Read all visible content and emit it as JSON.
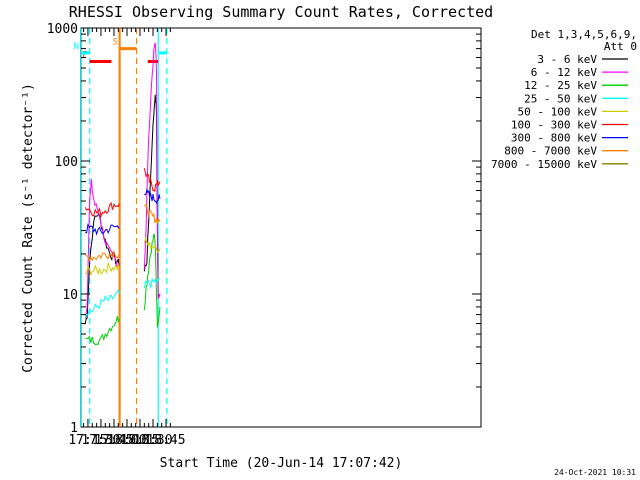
{
  "chart_data": {
    "type": "line",
    "title": "RHESSI Observing Summary Count Rates, Corrected",
    "xlabel": "Start Time (20-Jun-14 17:07:42)",
    "ylabel": "Corrected Count Rate (s⁻¹ detector⁻¹)",
    "ylog": true,
    "xlim_min": [
      1027,
      1488
    ],
    "ylim": [
      1,
      1000
    ],
    "xticks": [
      {
        "min": 1035,
        "label": "17:15"
      },
      {
        "min": 1050,
        "label": "17:30"
      },
      {
        "min": 1065,
        "label": "17:45"
      },
      {
        "min": 1080,
        "label": "18:00"
      },
      {
        "min": 1095,
        "label": "18:15"
      },
      {
        "min": 1110,
        "label": "18:30"
      },
      {
        "min": 1125,
        "label": "18:45"
      }
    ],
    "yticks": [
      {
        "value": 1,
        "label": "1"
      },
      {
        "value": 10,
        "label": "10"
      },
      {
        "value": 100,
        "label": "100"
      },
      {
        "value": 1000,
        "label": "1000"
      }
    ],
    "legend": {
      "placement": "right",
      "header": [
        "Det 1,3,4,5,6,9,",
        "Att 0"
      ]
    },
    "series": [
      {
        "name": "3 - 6 keV",
        "color": "#000000",
        "segments": [
          [
            [
              1032,
              6
            ],
            [
              1034,
              7
            ],
            [
              1037,
              18
            ],
            [
              1040,
              28
            ],
            [
              1043,
              38
            ],
            [
              1046,
              40
            ],
            [
              1049,
              37
            ],
            [
              1052,
              30
            ],
            [
              1055,
              25
            ],
            [
              1058,
              22
            ],
            [
              1061,
              20
            ],
            [
              1064,
              19
            ],
            [
              1067,
              18
            ],
            [
              1070,
              17
            ],
            [
              1071,
              17
            ]
          ],
          [
            [
              1100,
              15
            ],
            [
              1101,
              16
            ],
            [
              1103,
              18
            ],
            [
              1105,
              35
            ],
            [
              1107,
              70
            ],
            [
              1109,
              140
            ],
            [
              1111,
              230
            ],
            [
              1112,
              300
            ],
            [
              1113,
              290
            ],
            [
              1114,
              230
            ],
            [
              1115,
              30
            ],
            [
              1116,
              9
            ],
            [
              1118,
              10
            ]
          ]
        ]
      },
      {
        "name": "6 - 12 keV",
        "color": "#ff00ff",
        "segments": [
          [
            [
              1032,
              7
            ],
            [
              1034,
              8
            ],
            [
              1036,
              30
            ],
            [
              1037,
              50
            ],
            [
              1039,
              68
            ],
            [
              1041,
              55
            ],
            [
              1043,
              47
            ],
            [
              1046,
              43
            ],
            [
              1049,
              38
            ],
            [
              1052,
              30
            ],
            [
              1055,
              25
            ],
            [
              1058,
              22
            ],
            [
              1061,
              20
            ],
            [
              1064,
              19
            ],
            [
              1067,
              18
            ],
            [
              1070,
              17
            ],
            [
              1071,
              17
            ]
          ],
          [
            [
              1100,
              16
            ],
            [
              1102,
              30
            ],
            [
              1104,
              100
            ],
            [
              1106,
              200
            ],
            [
              1108,
              350
            ],
            [
              1110,
              550
            ],
            [
              1112,
              760
            ],
            [
              1113,
              700
            ],
            [
              1114,
              500
            ],
            [
              1115,
              35
            ],
            [
              1116,
              10
            ],
            [
              1118,
              10
            ]
          ]
        ]
      },
      {
        "name": "12 - 25 keV",
        "color": "#00cc00",
        "segments": [
          [
            [
              1032,
              4.5
            ],
            [
              1035,
              4.5
            ],
            [
              1040,
              4.5
            ],
            [
              1045,
              4.5
            ],
            [
              1050,
              4.5
            ],
            [
              1055,
              5
            ],
            [
              1060,
              5.5
            ],
            [
              1065,
              6
            ],
            [
              1069,
              6.5
            ],
            [
              1071,
              6.5
            ]
          ],
          [
            [
              1100,
              8
            ],
            [
              1102,
              11
            ],
            [
              1104,
              14
            ],
            [
              1106,
              18
            ],
            [
              1108,
              22
            ],
            [
              1110,
              25
            ],
            [
              1111,
              28
            ],
            [
              1112,
              25
            ],
            [
              1113,
              20
            ],
            [
              1114,
              10
            ],
            [
              1115,
              6
            ],
            [
              1118,
              8
            ]
          ]
        ]
      },
      {
        "name": "25 - 50 keV",
        "color": "#00ffff",
        "segments": [
          [
            [
              1032,
              7
            ],
            [
              1035,
              7.5
            ],
            [
              1040,
              7.5
            ],
            [
              1045,
              8
            ],
            [
              1050,
              8.5
            ],
            [
              1055,
              9
            ],
            [
              1060,
              9
            ],
            [
              1065,
              9.5
            ],
            [
              1069,
              10
            ],
            [
              1071,
              10
            ]
          ],
          [
            [
              1100,
              11
            ],
            [
              1103,
              12
            ],
            [
              1106,
              12
            ],
            [
              1109,
              12
            ],
            [
              1112,
              12.5
            ],
            [
              1115,
              12
            ],
            [
              1118,
              13
            ]
          ]
        ]
      },
      {
        "name": "50 - 100 keV",
        "color": "#cccc00",
        "segments": [
          [
            [
              1032,
              14
            ],
            [
              1035,
              15
            ],
            [
              1040,
              15
            ],
            [
              1045,
              15
            ],
            [
              1050,
              15
            ],
            [
              1055,
              15.5
            ],
            [
              1060,
              16
            ],
            [
              1065,
              16
            ],
            [
              1069,
              16
            ],
            [
              1071,
              16
            ]
          ],
          [
            [
              1100,
              25
            ],
            [
              1103,
              24
            ],
            [
              1106,
              23
            ],
            [
              1109,
              23
            ],
            [
              1112,
              22
            ],
            [
              1115,
              22
            ],
            [
              1118,
              22
            ]
          ]
        ]
      },
      {
        "name": "100 - 300 keV",
        "color": "#ff0000",
        "segments": [
          [
            [
              1032,
              45
            ],
            [
              1035,
              44
            ],
            [
              1040,
              42
            ],
            [
              1045,
              41
            ],
            [
              1050,
              41
            ],
            [
              1055,
              43
            ],
            [
              1060,
              45
            ],
            [
              1065,
              47
            ],
            [
              1069,
              47
            ],
            [
              1071,
              48
            ]
          ],
          [
            [
              1100,
              85
            ],
            [
              1102,
              80
            ],
            [
              1104,
              75
            ],
            [
              1106,
              70
            ],
            [
              1108,
              66
            ],
            [
              1110,
              64
            ],
            [
              1112,
              63
            ],
            [
              1114,
              66
            ],
            [
              1116,
              68
            ],
            [
              1118,
              70
            ]
          ]
        ]
      },
      {
        "name": "300 - 800 keV",
        "color": "#0000ff",
        "segments": [
          [
            [
              1032,
              30
            ],
            [
              1035,
              31
            ],
            [
              1040,
              31
            ],
            [
              1045,
              30
            ],
            [
              1050,
              29
            ],
            [
              1055,
              30
            ],
            [
              1060,
              31
            ],
            [
              1065,
              32
            ],
            [
              1069,
              32
            ],
            [
              1071,
              32
            ]
          ],
          [
            [
              1100,
              60
            ],
            [
              1102,
              58
            ],
            [
              1104,
              56
            ],
            [
              1106,
              55
            ],
            [
              1108,
              54
            ],
            [
              1110,
              53
            ],
            [
              1112,
              52
            ],
            [
              1114,
              52
            ],
            [
              1116,
              52
            ],
            [
              1118,
              52
            ]
          ]
        ]
      },
      {
        "name": "800 - 7000 keV",
        "color": "#ff8000",
        "segments": [
          [
            [
              1032,
              19
            ],
            [
              1035,
              19
            ],
            [
              1040,
              19
            ],
            [
              1045,
              19
            ],
            [
              1050,
              19.5
            ],
            [
              1055,
              20
            ],
            [
              1060,
              20
            ],
            [
              1065,
              20.5
            ],
            [
              1069,
              20
            ],
            [
              1071,
              20
            ]
          ],
          [
            [
              1100,
              46
            ],
            [
              1102,
              44
            ],
            [
              1104,
              42
            ],
            [
              1106,
              40
            ],
            [
              1108,
              39
            ],
            [
              1110,
              38
            ],
            [
              1112,
              37
            ],
            [
              1114,
              36
            ],
            [
              1116,
              36
            ],
            [
              1118,
              36
            ]
          ]
        ]
      },
      {
        "name": "7000 - 15000 keV",
        "color": "#808000",
        "segments": []
      }
    ],
    "attenuator_bars": [
      {
        "label": "F",
        "color": "#ff0000",
        "y": 560,
        "segments": [
          [
            1037,
            1062
          ],
          [
            1104,
            1116
          ]
        ]
      },
      {
        "label": "N",
        "color": "#00ffff",
        "y": 650,
        "segments": [
          [
            1027,
            1037
          ],
          [
            1117,
            1126
          ]
        ]
      },
      {
        "label": "S",
        "color": "#ff8000",
        "y": 700,
        "segments": [
          [
            1072,
            1091
          ]
        ]
      }
    ],
    "vertical_markers": [
      {
        "min": 1037,
        "color": "#00ffff",
        "style": "dashed"
      },
      {
        "min": 1071,
        "color": "#ff8000",
        "style": "solid"
      },
      {
        "min": 1072,
        "color": "#ff8000",
        "style": "solid"
      },
      {
        "min": 1091,
        "color": "#ff8000",
        "style": "dashed"
      },
      {
        "min": 1116,
        "color": "#00ffff",
        "style": "solid"
      },
      {
        "min": 1126,
        "color": "#00ffff",
        "style": "dashed"
      },
      {
        "min": 1027.5,
        "color": "#00ffff",
        "style": "solid"
      }
    ]
  },
  "footer": {
    "timestamp": "24-Oct-2021 10:31"
  }
}
